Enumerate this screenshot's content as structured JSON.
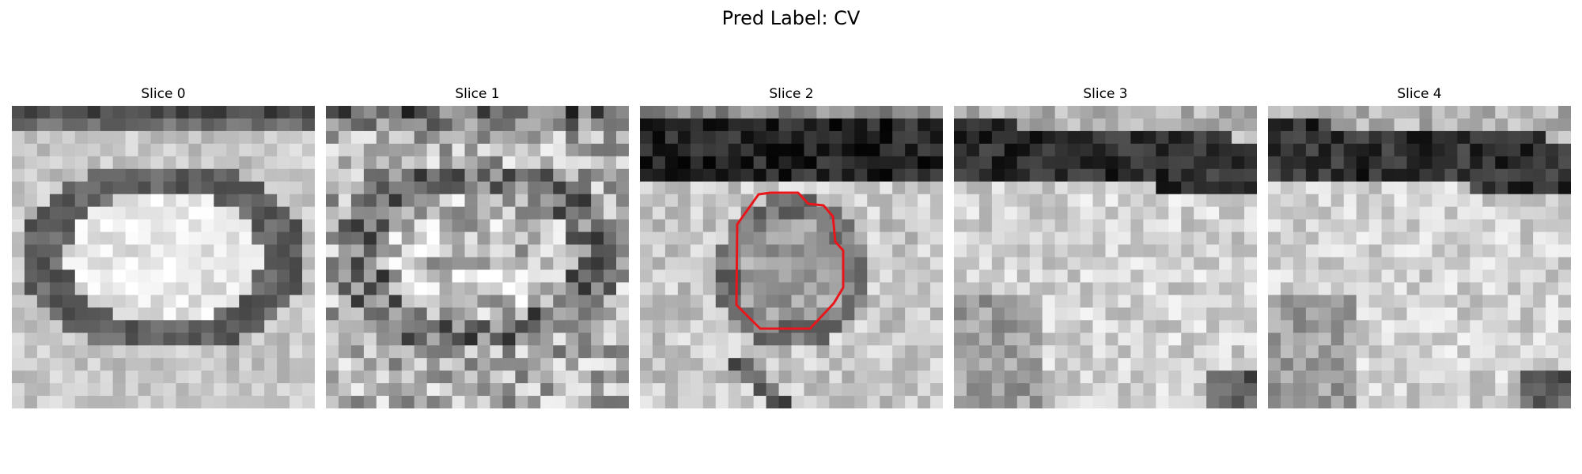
{
  "figure": {
    "title": "Pred Label: CV"
  },
  "panels": [
    {
      "title": "Slice 0",
      "pattern": "bright-oval"
    },
    {
      "title": "Slice 1",
      "pattern": "noisy-oval"
    },
    {
      "title": "Slice 2",
      "pattern": "dark-band-top",
      "contour": true
    },
    {
      "title": "Slice 3",
      "pattern": "dark-band-upper"
    },
    {
      "title": "Slice 4",
      "pattern": "dark-band-upper"
    }
  ],
  "colors": {
    "contour": "#e8161b"
  }
}
